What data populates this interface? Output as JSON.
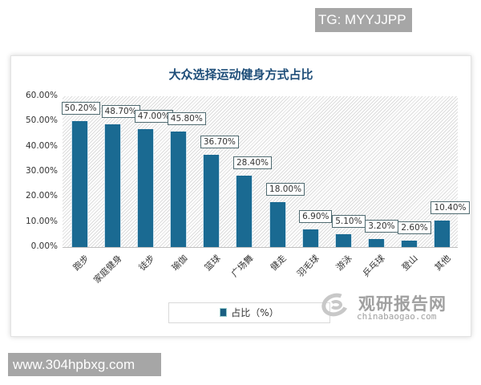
{
  "watermarks": {
    "top_right": "TG: MYYJJPP",
    "bottom_left": "www.304hpbxg.com"
  },
  "logo": {
    "name_cn": "观研报告网",
    "domain": "chinabaogao.com"
  },
  "legend": {
    "label": "占比（%）",
    "color": "#1a6a92"
  },
  "colors": {
    "bar": "#1a6a92",
    "title": "#1f4e79",
    "label_border": "#4f6a70"
  },
  "chart_data": {
    "type": "bar",
    "title": "大众选择运动健身方式占比",
    "xlabel": "",
    "ylabel": "",
    "ylim": [
      0,
      60
    ],
    "yticks": [
      "0.00%",
      "10.00%",
      "20.00%",
      "30.00%",
      "40.00%",
      "50.00%",
      "60.00%"
    ],
    "categories": [
      "跑步",
      "家庭健身",
      "徒步",
      "瑜伽",
      "篮球",
      "广场舞",
      "健走",
      "羽毛球",
      "游泳",
      "乒乓球",
      "登山",
      "其他"
    ],
    "values": [
      50.2,
      48.7,
      47.0,
      45.8,
      36.7,
      28.4,
      18.0,
      6.9,
      5.1,
      3.2,
      2.6,
      10.4
    ],
    "value_labels": [
      "50.20%",
      "48.70%",
      "47.00%",
      "45.80%",
      "36.70%",
      "28.40%",
      "18.00%",
      "6.90%",
      "5.10%",
      "3.20%",
      "2.60%",
      "10.40%"
    ],
    "series": [
      {
        "name": "占比（%）",
        "values": [
          50.2,
          48.7,
          47.0,
          45.8,
          36.7,
          28.4,
          18.0,
          6.9,
          5.1,
          3.2,
          2.6,
          10.4
        ]
      }
    ],
    "legend_position": "bottom",
    "grid": false
  }
}
